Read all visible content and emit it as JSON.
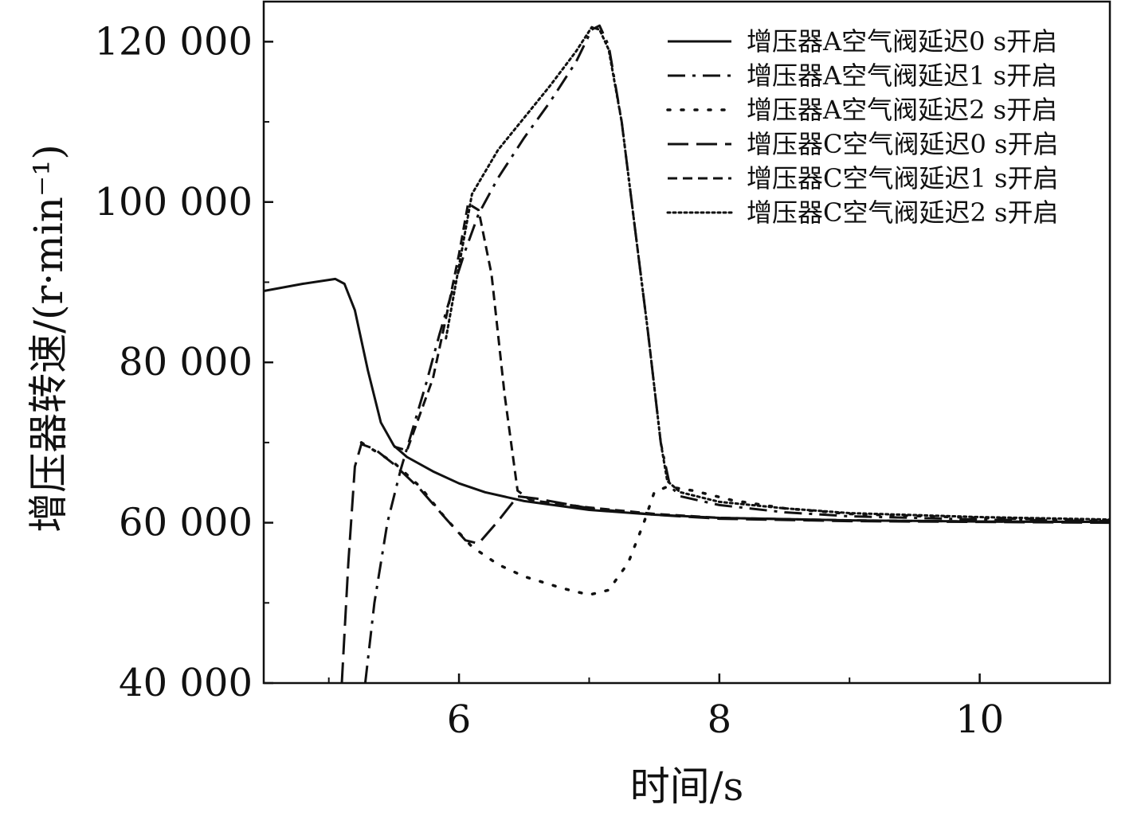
{
  "chart_data": {
    "type": "line",
    "title": "",
    "xlabel": "时间/s",
    "ylabel": "增压器转速/(r·min⁻¹)",
    "xlim": [
      4.5,
      11
    ],
    "ylim": [
      40000,
      125000
    ],
    "x_ticks": [
      6,
      8,
      10
    ],
    "x_tick_labels": [
      "6",
      "8",
      "10"
    ],
    "y_ticks": [
      40000,
      60000,
      80000,
      100000,
      120000
    ],
    "y_tick_labels": [
      "40 000",
      "60 000",
      "80 000",
      "100 000",
      "120 000"
    ],
    "grid": false,
    "legend_position": "top-right",
    "series": [
      {
        "name": "增压器A空气阀延迟0 s开启",
        "style": "solid",
        "points": [
          [
            4.5,
            88900
          ],
          [
            4.8,
            89800
          ],
          [
            5.05,
            90400
          ],
          [
            5.12,
            89800
          ],
          [
            5.2,
            86500
          ],
          [
            5.3,
            79000
          ],
          [
            5.4,
            72500
          ],
          [
            5.5,
            69600
          ],
          [
            5.6,
            68200
          ],
          [
            5.8,
            66400
          ],
          [
            6.0,
            64900
          ],
          [
            6.2,
            63800
          ],
          [
            6.5,
            62700
          ],
          [
            7.0,
            61600
          ],
          [
            7.5,
            61000
          ],
          [
            8.0,
            60600
          ],
          [
            9.0,
            60300
          ],
          [
            10.0,
            60150
          ],
          [
            11.0,
            60100
          ]
        ]
      },
      {
        "name": "增压器A空气阀延迟1 s开启",
        "style": "dashdot",
        "points": [
          [
            5.28,
            40000
          ],
          [
            5.35,
            50000
          ],
          [
            5.45,
            60000
          ],
          [
            5.55,
            66500
          ],
          [
            5.65,
            72000
          ],
          [
            5.75,
            77500
          ],
          [
            5.85,
            83500
          ],
          [
            5.95,
            89000
          ],
          [
            6.05,
            94000
          ],
          [
            6.15,
            98500
          ],
          [
            6.3,
            103000
          ],
          [
            6.5,
            108000
          ],
          [
            6.7,
            112500
          ],
          [
            6.9,
            117500
          ],
          [
            7.02,
            121500
          ],
          [
            7.08,
            122000
          ],
          [
            7.15,
            119500
          ],
          [
            7.25,
            110000
          ],
          [
            7.35,
            97000
          ],
          [
            7.45,
            84000
          ],
          [
            7.55,
            70000
          ],
          [
            7.62,
            64600
          ],
          [
            7.7,
            63300
          ],
          [
            8.0,
            62200
          ],
          [
            8.5,
            61300
          ],
          [
            9.0,
            60800
          ],
          [
            10.0,
            60400
          ],
          [
            11.0,
            60200
          ]
        ]
      },
      {
        "name": "增压器A空气阀延迟2 s开启",
        "style": "dotted-sparse",
        "points": [
          [
            5.25,
            70000
          ],
          [
            5.35,
            69000
          ],
          [
            5.5,
            67500
          ],
          [
            5.7,
            64500
          ],
          [
            5.9,
            60500
          ],
          [
            6.1,
            57000
          ],
          [
            6.3,
            54800
          ],
          [
            6.5,
            53300
          ],
          [
            6.8,
            51800
          ],
          [
            7.0,
            51000
          ],
          [
            7.15,
            51600
          ],
          [
            7.3,
            55000
          ],
          [
            7.42,
            60000
          ],
          [
            7.5,
            63800
          ],
          [
            7.6,
            64500
          ],
          [
            7.8,
            64000
          ],
          [
            8.1,
            62800
          ],
          [
            8.5,
            61800
          ],
          [
            9.0,
            61100
          ],
          [
            10.0,
            60600
          ],
          [
            11.0,
            60300
          ]
        ]
      },
      {
        "name": "增压器C空气阀延迟0 s开启",
        "style": "longdash",
        "points": [
          [
            5.1,
            40000
          ],
          [
            5.15,
            55000
          ],
          [
            5.2,
            67000
          ],
          [
            5.25,
            69800
          ],
          [
            5.35,
            69200
          ],
          [
            5.5,
            67300
          ],
          [
            5.7,
            64200
          ],
          [
            5.9,
            60500
          ],
          [
            6.05,
            57800
          ],
          [
            6.15,
            57400
          ],
          [
            6.3,
            60200
          ],
          [
            6.45,
            63300
          ],
          [
            6.6,
            63000
          ],
          [
            7.0,
            61800
          ],
          [
            7.5,
            61000
          ],
          [
            8.0,
            60500
          ],
          [
            9.0,
            60200
          ],
          [
            10.0,
            60100
          ],
          [
            11.0,
            60000
          ]
        ]
      },
      {
        "name": "增压器C空气阀延迟1 s开启",
        "style": "shortdash",
        "points": [
          [
            5.5,
            69500
          ],
          [
            5.6,
            69000
          ],
          [
            5.8,
            78000
          ],
          [
            5.9,
            85500
          ],
          [
            6.0,
            93500
          ],
          [
            6.07,
            99800
          ],
          [
            6.15,
            99000
          ],
          [
            6.25,
            91000
          ],
          [
            6.35,
            76000
          ],
          [
            6.45,
            64000
          ],
          [
            6.55,
            62800
          ],
          [
            7.0,
            61900
          ],
          [
            7.5,
            61100
          ],
          [
            8.0,
            60600
          ],
          [
            9.0,
            60300
          ],
          [
            10.0,
            60150
          ],
          [
            11.0,
            60100
          ]
        ]
      },
      {
        "name": "增压器C空气阀延迟2 s开启",
        "style": "dense-dotted",
        "points": [
          [
            5.9,
            83000
          ],
          [
            6.1,
            101000
          ],
          [
            6.3,
            106500
          ],
          [
            6.5,
            110500
          ],
          [
            6.7,
            114500
          ],
          [
            6.9,
            118800
          ],
          [
            7.02,
            121800
          ],
          [
            7.08,
            121500
          ],
          [
            7.15,
            119000
          ],
          [
            7.25,
            110000
          ],
          [
            7.35,
            97000
          ],
          [
            7.45,
            84000
          ],
          [
            7.55,
            70000
          ],
          [
            7.6,
            65200
          ],
          [
            7.7,
            63800
          ],
          [
            8.0,
            62600
          ],
          [
            8.5,
            61800
          ],
          [
            9.0,
            61200
          ],
          [
            10.0,
            60700
          ],
          [
            11.0,
            60400
          ]
        ]
      }
    ]
  }
}
